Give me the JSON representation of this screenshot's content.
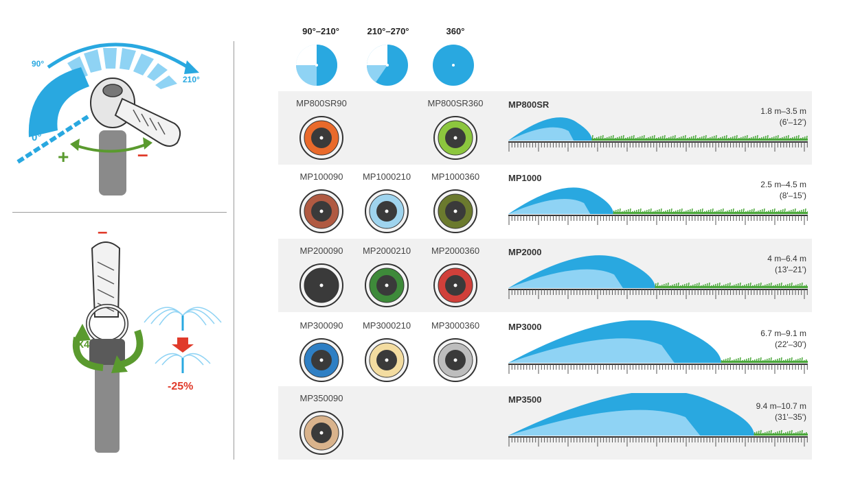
{
  "arc_headers": [
    {
      "label": "90°–210°",
      "icon": "quarter-to-half-arc-icon"
    },
    {
      "label": "210°–270°",
      "icon": "three-quarter-arc-icon"
    },
    {
      "label": "360°",
      "icon": "full-circle-icon"
    }
  ],
  "left_panel": {
    "arc_labels": {
      "start": "90°",
      "end": "210°",
      "zero": "0°"
    },
    "plus": "+",
    "minus": "–",
    "rotations": "X4",
    "reduction": "-25%"
  },
  "colors": {
    "accent_blue": "#29a8e0",
    "light_blue": "#8fd3f4",
    "grass_green": "#4aa83a",
    "adjust_green": "#5a9a2e",
    "minus_red": "#e03a2a"
  },
  "series": [
    {
      "name": "MP800SR",
      "range_m": "1.8 m–3.5 m",
      "range_ft": "(6'–12')",
      "spray_fraction": 0.28,
      "models": [
        {
          "label": "MP800SR90",
          "column": 0,
          "color": "#e96a2b"
        },
        {
          "label": "",
          "column": 1,
          "color": ""
        },
        {
          "label": "MP800SR360",
          "column": 2,
          "color": "#8cc63e"
        }
      ]
    },
    {
      "name": "MP1000",
      "range_m": "2.5 m–4.5 m",
      "range_ft": "(8'–15')",
      "spray_fraction": 0.35,
      "models": [
        {
          "label": "MP100090",
          "column": 0,
          "color": "#b05a42"
        },
        {
          "label": "MP1000210",
          "column": 1,
          "color": "#9fd4ee"
        },
        {
          "label": "MP1000360",
          "column": 2,
          "color": "#6b7a2e"
        }
      ]
    },
    {
      "name": "MP2000",
      "range_m": "4 m–6.4 m",
      "range_ft": "(13'–21')",
      "spray_fraction": 0.49,
      "models": [
        {
          "label": "MP200090",
          "column": 0,
          "color": "#3a3a3a"
        },
        {
          "label": "MP2000210",
          "column": 1,
          "color": "#3e8a3a"
        },
        {
          "label": "MP2000360",
          "column": 2,
          "color": "#d0403a"
        }
      ]
    },
    {
      "name": "MP3000",
      "range_m": "6.7 m–9.1 m",
      "range_ft": "(22'–30')",
      "spray_fraction": 0.71,
      "models": [
        {
          "label": "MP300090",
          "column": 0,
          "color": "#2e7fc4"
        },
        {
          "label": "MP3000210",
          "column": 1,
          "color": "#f3dca0"
        },
        {
          "label": "MP3000360",
          "column": 2,
          "color": "#bdbdbd"
        }
      ]
    },
    {
      "name": "MP3500",
      "range_m": "9.4 m–10.7 m",
      "range_ft": "(31'–35')",
      "spray_fraction": 0.82,
      "models": [
        {
          "label": "MP350090",
          "column": 0,
          "color": "#d9b38c"
        },
        {
          "label": "",
          "column": 1,
          "color": ""
        },
        {
          "label": "",
          "column": 2,
          "color": ""
        }
      ]
    }
  ]
}
